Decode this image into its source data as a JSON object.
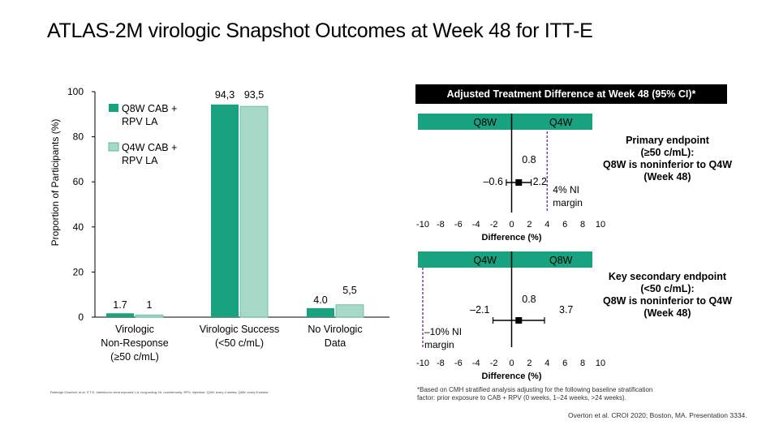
{
  "title": "ATLAS-2M virologic Snapshot Outcomes at Week 48 for ITT-E",
  "colors": {
    "q8w": "#19a27f",
    "q4w": "#a8d8c8",
    "q4w_stroke": "#5bbba0",
    "ci_line": "#000000",
    "ni_line": "#7a3ea8"
  },
  "chart_data": [
    {
      "type": "bar",
      "title": "",
      "ylabel": "Proportion of Participants (%)",
      "xlabel": "",
      "ylim": [
        0,
        100
      ],
      "yticks": [
        "0",
        "20",
        "40",
        "60",
        "80",
        "100"
      ],
      "categories": [
        "Virologic Non-Response (≥50 c/mL)",
        "Virologic Success (<50 c/mL)",
        "No Virologic Data"
      ],
      "category_lines": [
        [
          "Virologic",
          "Non-Response",
          "(≥50 c/mL)"
        ],
        [
          "Virologic Success",
          "(<50 c/mL)"
        ],
        [
          "No Virologic",
          "Data"
        ]
      ],
      "series": [
        {
          "name": "Q8W CAB + RPV LA",
          "values": [
            1.7,
            94.3,
            4.0
          ],
          "labels": [
            "1.7",
            "94,3",
            "4.0"
          ]
        },
        {
          "name": "Q4W CAB + RPV LA",
          "values": [
            1.0,
            93.5,
            5.5
          ],
          "labels": [
            "1",
            "93,5",
            "5,5"
          ]
        }
      ],
      "legend": [
        {
          "line1": "Q8W CAB +",
          "line2": "RPV LA"
        },
        {
          "line1": "Q4W CAB +",
          "line2": "RPV LA"
        }
      ],
      "legend_position": "top-left"
    },
    {
      "type": "forest",
      "title": "Adjusted Treatment Difference at Week 48 (95% CI)*",
      "xlabel": "Difference (%)",
      "xlim": [
        -10,
        10
      ],
      "xticks": [
        "-10",
        "-8",
        "-6",
        "-4",
        "-2",
        "0",
        "2",
        "4",
        "6",
        "8",
        "10"
      ],
      "panels": [
        {
          "left_label": "Q8W",
          "right_label": "Q4W",
          "point": 0.8,
          "ci": [
            -0.6,
            2.2
          ],
          "point_label": "0.8",
          "ci_labels": [
            "–0.6",
            "2.2"
          ],
          "ni_margin": 4,
          "ni_label_lines": [
            "4% NI",
            "margin"
          ],
          "endpoint_lines": [
            "Primary endpoint",
            "(≥50 c/mL):",
            "Q8W is noninferior to Q4W",
            "(Week 48)"
          ]
        },
        {
          "left_label": "Q4W",
          "right_label": "Q8W",
          "point": 0.8,
          "ci": [
            -2.1,
            3.7
          ],
          "point_label": "0.8",
          "ci_labels": [
            "–2.1",
            "3.7"
          ],
          "ni_margin": -10,
          "ni_label_lines": [
            "–10% NI",
            "margin"
          ],
          "endpoint_lines": [
            "Key secondary endpoint",
            "(<50 c/mL):",
            "Q8W is noninferior to Q4W",
            "(Week 48)"
          ]
        }
      ]
    }
  ],
  "footnote_left": "Rutledge-Ceschini, et al. ITT-E, intention-to-treat exposed; LA, long-acting; NI, noninferiority; RPV, rilpivirine; Q4W, every 4 weeks; Q8W, every 8 weeks.",
  "footnote_right": "*Based on CMH stratified analysis adjusting for the following baseline stratification factor: prior exposure to CAB + RPV (0 weeks, 1–24 weeks, >24 weeks).",
  "citation": "Overton et al. CROI 2020; Boston, MA. Presentation 3334."
}
